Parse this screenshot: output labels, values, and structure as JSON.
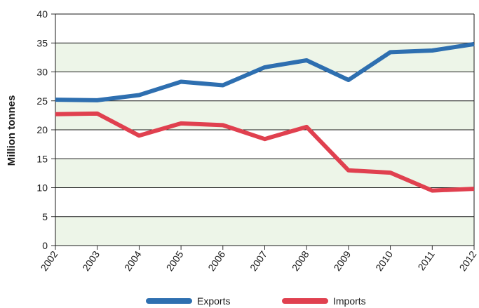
{
  "chart_data": {
    "type": "line",
    "title": "",
    "xlabel": "",
    "ylabel": "Million tonnes",
    "categories": [
      "2002",
      "2003",
      "2004",
      "2005",
      "2006",
      "2007",
      "2008",
      "2009",
      "2010",
      "2011",
      "2012"
    ],
    "ylim": [
      0,
      40
    ],
    "yticks": [
      "0",
      "5",
      "10",
      "15",
      "20",
      "25",
      "30",
      "35",
      "40"
    ],
    "grid": true,
    "band_color": "#edf5e8",
    "legend_position": "bottom",
    "series": [
      {
        "name": "Exports",
        "color": "#2e6fb0",
        "values": [
          25.2,
          25.1,
          26.0,
          28.3,
          27.7,
          30.8,
          32.0,
          28.6,
          33.4,
          33.7,
          34.8
        ]
      },
      {
        "name": "Imports",
        "color": "#e0404f",
        "values": [
          22.7,
          22.8,
          19.0,
          21.1,
          20.8,
          18.4,
          20.5,
          13.0,
          12.6,
          9.5,
          9.8
        ]
      }
    ]
  }
}
